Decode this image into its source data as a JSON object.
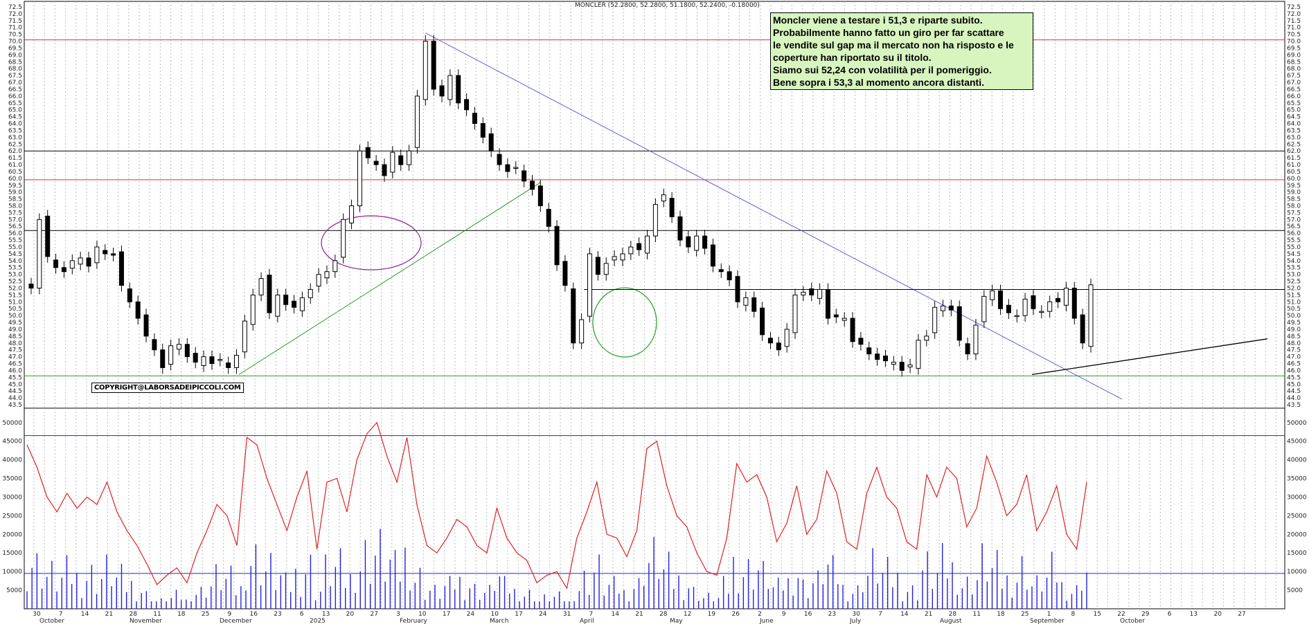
{
  "header": {
    "ticker_line": "MONCLER (52.2800, 52.2800, 51.1800, 52.2400, -0.18000)"
  },
  "annotation": {
    "lines": [
      "Moncler viene a testare i 51,3 e riparte subito.",
      "Probabilmente hanno fatto un giro per far scattare",
      "le vendite sul gap ma il mercato non ha risposto e le",
      "coperture han riportato su il titolo.",
      "Siamo sui 52,24 con volatilità per il pomeriggio.",
      "Bene sopra i 53,3 al momento ancora distanti."
    ]
  },
  "copyright": "COPYRIGHT@LABORSADEIPICCOLI.COM",
  "colors": {
    "price_h_red": "#e03030",
    "price_h_black": "#000000",
    "support_green": "#2a9a2a",
    "trend_blue": "#6060d8",
    "volume_bar": "#2020e0",
    "volume_line": "#e02020",
    "circle_purple": "#8a1f9a",
    "circle_green": "#22a022"
  },
  "chart_data": [
    {
      "type": "candlestick",
      "title": "MONCLER",
      "ylim": [
        43.5,
        72.5
      ],
      "y_ticks": [
        43.5,
        44.0,
        44.5,
        45.0,
        45.5,
        46.0,
        46.5,
        47.0,
        47.5,
        48.0,
        48.5,
        49.0,
        49.5,
        50.0,
        50.5,
        51.0,
        51.5,
        52.0,
        52.5,
        53.0,
        53.5,
        54.0,
        54.5,
        55.0,
        55.5,
        56.0,
        56.5,
        57.0,
        57.5,
        58.0,
        58.5,
        59.0,
        59.5,
        60.0,
        60.5,
        61.0,
        61.5,
        62.0,
        62.5,
        63.0,
        63.5,
        64.0,
        64.5,
        65.0,
        65.5,
        66.0,
        66.5,
        67.0,
        67.5,
        68.0,
        68.5,
        69.0,
        69.5,
        70.0,
        70.5,
        71.0,
        71.5,
        72.0,
        72.5
      ],
      "y_tick_labels": [
        "43.5",
        "44.0",
        "44.5",
        "45.0",
        "45.5",
        "46.0",
        "46.5",
        "47.0",
        "47.5",
        "48.0",
        "48.5",
        "49.0",
        "49.5",
        "50.0",
        "50.5",
        "51.0",
        "51.5",
        "52.0",
        "52.5",
        "53.0",
        "53.5",
        "54.0",
        "54.5",
        "55.0",
        "55.5",
        "56.0",
        "56.5",
        "57.0",
        "57.5",
        "58.0",
        "58.5",
        "59.0",
        "59.5",
        "60.0",
        "60.5",
        "61.0",
        "61.5",
        "62.0",
        "62.5",
        "63.0",
        "63.5",
        "64.0",
        "64.5",
        "65.0",
        "65.5",
        "66.0",
        "66.5",
        "67.0",
        "67.5",
        "68.0",
        "68.5",
        "69.0",
        "69.5",
        "70.0",
        "70.5",
        "71.0",
        "71.5",
        "72.0",
        "72.5"
      ],
      "horizontal_levels": [
        {
          "value": 70.1,
          "color": "red"
        },
        {
          "value": 62.0,
          "color": "black"
        },
        {
          "value": 59.9,
          "color": "red"
        },
        {
          "value": 56.2,
          "color": "black"
        },
        {
          "value": 45.6,
          "color": "green"
        }
      ],
      "close_series": [
        52.0,
        57.0,
        54.3,
        53.5,
        53.2,
        54.0,
        54.2,
        53.6,
        55.0,
        54.5,
        54.4,
        52.2,
        51.0,
        49.8,
        48.5,
        47.5,
        46.2,
        47.8,
        47.9,
        47.0,
        46.6,
        47.0,
        46.5,
        46.8,
        46.2,
        47.1,
        49.6,
        51.5,
        52.7,
        50.2,
        51.5,
        50.8,
        50.6,
        51.3,
        51.9,
        53.0,
        53.2,
        54.0,
        57.0,
        58.0,
        62.0,
        61.5,
        61.0,
        60.2,
        61.9,
        61.0,
        62.0,
        66.0,
        70.0,
        66.5,
        66.0,
        67.5,
        65.5,
        65.0,
        64.0,
        63.0,
        62.0,
        61.0,
        60.5,
        60.8,
        59.8,
        59.2,
        58.0,
        56.5,
        53.7,
        52.2,
        48.0,
        49.7,
        54.5,
        53.0,
        53.8,
        54.3,
        54.5,
        55.0,
        54.8,
        55.8,
        58.1,
        58.8,
        57.2,
        55.5,
        55.0,
        55.8,
        54.9,
        53.6,
        53.2,
        52.6,
        51.0,
        51.3,
        50.3,
        48.6,
        48.0,
        47.5,
        49.0,
        51.5,
        51.7,
        51.5,
        51.9,
        49.8,
        49.9,
        49.8,
        48.1,
        47.9,
        47.2,
        46.8,
        46.7,
        46.6,
        46.0,
        46.4,
        48.2,
        48.5,
        50.6,
        50.7,
        50.4,
        48.2,
        47.2,
        49.3,
        51.4,
        51.8,
        50.5,
        50.2,
        50.0,
        51.2,
        50.5,
        50.3,
        51.0,
        51.0,
        52.0,
        49.8,
        48.0,
        52.24
      ]
    },
    {
      "type": "bar+line",
      "title": "Volume",
      "ylim": [
        0,
        52000
      ],
      "y_ticks": [
        5000,
        10000,
        15000,
        20000,
        25000,
        30000,
        35000,
        40000,
        45000,
        50000
      ],
      "y_tick_labels": [
        "5000",
        "10000",
        "15000",
        "20000",
        "25000",
        "30000",
        "35000",
        "40000",
        "45000",
        "50000"
      ],
      "horizontal_levels": [
        {
          "value": 46500,
          "color": "blue"
        },
        {
          "value": 9500,
          "color": "blue"
        }
      ],
      "volume_line": [
        44000,
        38000,
        30000,
        26000,
        31000,
        27000,
        30000,
        28000,
        34000,
        26000,
        21000,
        17000,
        12000,
        6500,
        9000,
        11000,
        7000,
        15000,
        21000,
        28000,
        25000,
        17000,
        46000,
        44000,
        35000,
        28000,
        21000,
        30000,
        37000,
        16000,
        34000,
        35000,
        26000,
        40000,
        47000,
        50000,
        41000,
        34000,
        46000,
        28000,
        17000,
        15000,
        19000,
        24000,
        22000,
        17000,
        15000,
        27000,
        19000,
        15000,
        13000,
        7000,
        9000,
        10000,
        5500,
        19000,
        26000,
        34000,
        20000,
        19000,
        14000,
        21000,
        43000,
        45000,
        33000,
        25000,
        22000,
        15000,
        10000,
        9000,
        19000,
        39000,
        34000,
        36000,
        30000,
        18000,
        23000,
        33000,
        20000,
        24000,
        37000,
        31000,
        18000,
        16000,
        31000,
        38000,
        30000,
        27000,
        18000,
        16000,
        36000,
        30000,
        38000,
        35000,
        22000,
        27000,
        41000,
        34000,
        25000,
        28000,
        36000,
        21000,
        26000,
        33000,
        20000,
        16000,
        34000
      ],
      "x_month_labels": [
        "October",
        "November",
        "December",
        "2025",
        "February",
        "March",
        "April",
        "May",
        "June",
        "July",
        "August",
        "September",
        "October"
      ],
      "x_day_labels": [
        "30",
        "7",
        "14",
        "21",
        "28",
        "11",
        "18",
        "25",
        "9",
        "16",
        "23",
        "6",
        "13",
        "20",
        "27",
        "3",
        "10",
        "17",
        "24",
        "10",
        "17",
        "24",
        "31",
        "7",
        "14",
        "21",
        "28",
        "12",
        "19",
        "26",
        "2",
        "9",
        "16",
        "23",
        "30",
        "7",
        "14",
        "21",
        "28",
        "11",
        "18",
        "25",
        "1",
        "8",
        "15",
        "22",
        "29",
        "6",
        "13",
        "20",
        "27"
      ]
    }
  ]
}
